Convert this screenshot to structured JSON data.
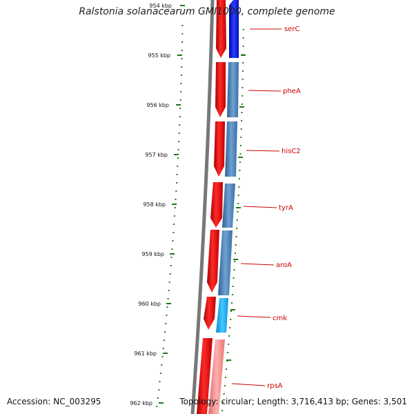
{
  "title": "Ralstonia solanacearum GMI1000, complete genome",
  "accession": "Accession: NC_003295",
  "topology": "Topology: circular; Length: 3,716,413 bp; Genes: 3,501",
  "ticks": [
    "954 kbp",
    "955 kbp",
    "956 kbp",
    "957 kbp",
    "958 kbp",
    "959 kbp",
    "960 kbp",
    "961 kbp",
    "962 kbp"
  ],
  "genes": [
    {
      "name": "serC",
      "strand_color": "#1020d0"
    },
    {
      "name": "pheA",
      "strand_color": "#4f86bb"
    },
    {
      "name": "hisC2",
      "strand_color": "#4f86bb"
    },
    {
      "name": "tyrA",
      "strand_color": "#4f86bb"
    },
    {
      "name": "aroA",
      "strand_color": "#4f86bb"
    },
    {
      "name": "cmk",
      "strand_color": "#22a8e8"
    },
    {
      "name": "rpsA",
      "strand_color": "#f08a8a"
    }
  ],
  "colors": {
    "backbone": "#777777",
    "forward_strand": "#e00000",
    "label": "#cc0000",
    "tick": "#1a7a1a"
  }
}
